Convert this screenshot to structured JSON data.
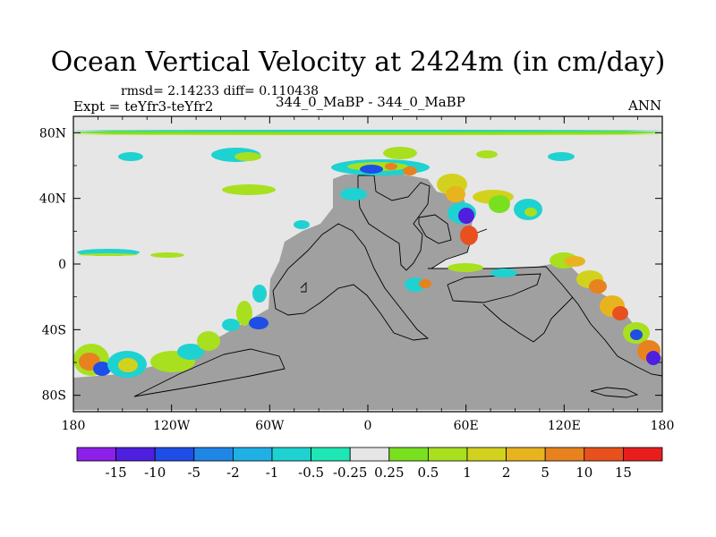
{
  "chart_data": {
    "type": "heatmap",
    "title": "Ocean Vertical Velocity at 2424m (in cm/day)",
    "subtitle_stats": "rmsd= 2.14233 diff= 0.110438",
    "left_label": "Expt = teYfr3-teYfr2",
    "center_label": "344_0_MaBP - 344_0_MaBP",
    "right_label": "ANN",
    "x_ticks": [
      "180",
      "120W",
      "60W",
      "0",
      "60E",
      "120E",
      "180"
    ],
    "y_ticks": [
      "80N",
      "40N",
      "0",
      "40S",
      "80S"
    ],
    "xlim": [
      -180,
      180
    ],
    "ylim": [
      -90,
      90
    ],
    "colorbar": {
      "labels": [
        "-15",
        "-10",
        "-5",
        "-2",
        "-1",
        "-0.5",
        "-0.25",
        "0.25",
        "0.5",
        "1",
        "2",
        "5",
        "10",
        "15"
      ],
      "colors": [
        "#8c1fe8",
        "#4f1fe0",
        "#1e4ee6",
        "#1f86e6",
        "#1fb0e6",
        "#1ed2d2",
        "#1ee6b4",
        "#e6e6e6",
        "#79e01f",
        "#a8e01f",
        "#d2d21e",
        "#e8b41e",
        "#e8821e",
        "#e8501e",
        "#e81e1e"
      ]
    },
    "colors": {
      "land": "#a0a0a0",
      "near_zero": "#e6e6e6",
      "background": "#ffffff"
    }
  }
}
